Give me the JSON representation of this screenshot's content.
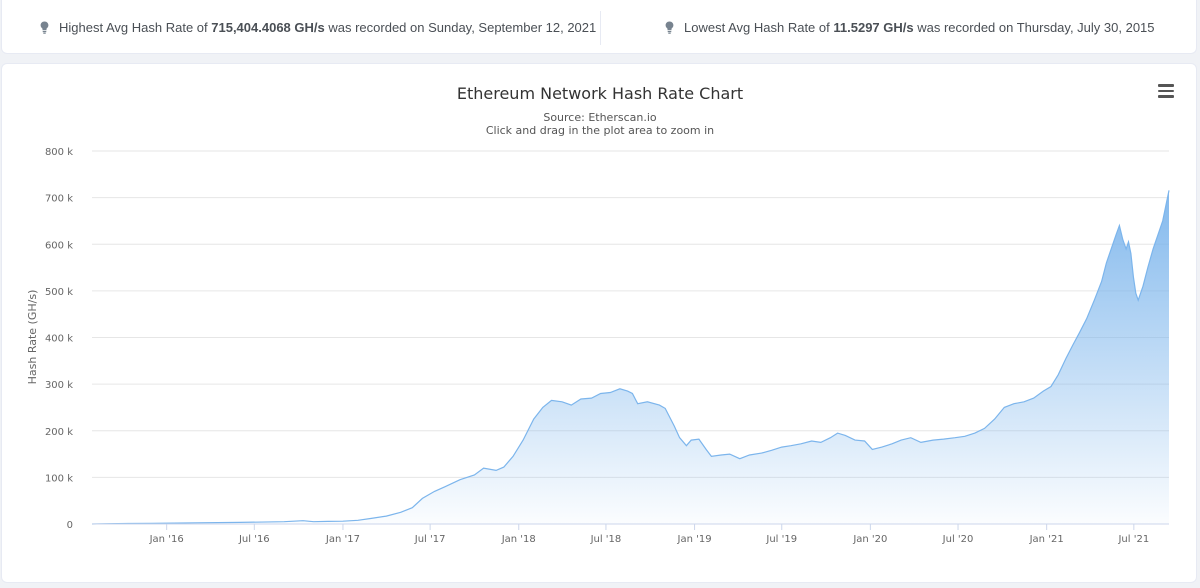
{
  "stats": {
    "highest": {
      "prefix": "Highest Avg Hash Rate of ",
      "value": "715,404.4068 GH/s",
      "suffix": " was recorded on Sunday, September 12, 2021"
    },
    "lowest": {
      "prefix": "Lowest Avg Hash Rate of ",
      "value": "11.5297 GH/s",
      "suffix": " was recorded on Thursday, July 30, 2015"
    },
    "icon": "lightbulb-icon"
  },
  "chart_data": {
    "type": "area",
    "title": "Ethereum Network Hash Rate Chart",
    "subtitle": "Source: Etherscan.io",
    "subtitle2": "Click and drag in the plot area to zoom in",
    "xlabel": "",
    "ylabel": "Hash Rate (GH/s)",
    "ylim": [
      0,
      800000
    ],
    "yticks": [
      0,
      100000,
      200000,
      300000,
      400000,
      500000,
      600000,
      700000,
      800000
    ],
    "ytick_labels": [
      "0",
      "100 k",
      "200 k",
      "300 k",
      "400 k",
      "500 k",
      "600 k",
      "700 k",
      "800 k"
    ],
    "xlim": [
      "2015-07-30",
      "2021-09-12"
    ],
    "xtick_dates": [
      "2016-01-01",
      "2016-07-01",
      "2017-01-01",
      "2017-07-01",
      "2018-01-01",
      "2018-07-01",
      "2019-01-01",
      "2019-07-01",
      "2020-01-01",
      "2020-07-01",
      "2021-01-01",
      "2021-07-01"
    ],
    "xtick_labels": [
      "Jan '16",
      "Jul '16",
      "Jan '17",
      "Jul '17",
      "Jan '18",
      "Jul '18",
      "Jan '19",
      "Jul '19",
      "Jan '20",
      "Jul '20",
      "Jan '21",
      "Jul '21"
    ],
    "grid": true,
    "color": "#7cb5ec",
    "series": [
      {
        "name": "Hash Rate (GH/s)",
        "points": [
          [
            "2015-07-30",
            11.53
          ],
          [
            "2015-09-01",
            700
          ],
          [
            "2015-12-01",
            1500
          ],
          [
            "2016-03-01",
            2500
          ],
          [
            "2016-06-01",
            3500
          ],
          [
            "2016-09-01",
            5000
          ],
          [
            "2016-10-10",
            7000
          ],
          [
            "2016-11-01",
            5000
          ],
          [
            "2016-12-01",
            5500
          ],
          [
            "2017-01-01",
            6000
          ],
          [
            "2017-02-01",
            8000
          ],
          [
            "2017-03-01",
            12000
          ],
          [
            "2017-04-01",
            17000
          ],
          [
            "2017-05-01",
            25000
          ],
          [
            "2017-05-25",
            35000
          ],
          [
            "2017-06-15",
            55000
          ],
          [
            "2017-07-10",
            70000
          ],
          [
            "2017-08-01",
            80000
          ],
          [
            "2017-09-01",
            95000
          ],
          [
            "2017-10-01",
            105000
          ],
          [
            "2017-10-20",
            120000
          ],
          [
            "2017-11-15",
            115000
          ],
          [
            "2017-12-01",
            122000
          ],
          [
            "2017-12-20",
            145000
          ],
          [
            "2018-01-10",
            180000
          ],
          [
            "2018-02-01",
            225000
          ],
          [
            "2018-02-20",
            250000
          ],
          [
            "2018-03-10",
            265000
          ],
          [
            "2018-04-01",
            262000
          ],
          [
            "2018-04-20",
            255000
          ],
          [
            "2018-05-10",
            268000
          ],
          [
            "2018-06-01",
            270000
          ],
          [
            "2018-06-20",
            280000
          ],
          [
            "2018-07-10",
            282000
          ],
          [
            "2018-07-30",
            290000
          ],
          [
            "2018-08-15",
            285000
          ],
          [
            "2018-08-25",
            280000
          ],
          [
            "2018-09-05",
            258000
          ],
          [
            "2018-09-25",
            262000
          ],
          [
            "2018-10-20",
            255000
          ],
          [
            "2018-11-01",
            248000
          ],
          [
            "2018-11-20",
            210000
          ],
          [
            "2018-12-01",
            185000
          ],
          [
            "2018-12-15",
            168000
          ],
          [
            "2018-12-25",
            180000
          ],
          [
            "2019-01-10",
            182000
          ],
          [
            "2019-01-25",
            160000
          ],
          [
            "2019-02-05",
            145000
          ],
          [
            "2019-02-25",
            148000
          ],
          [
            "2019-03-15",
            150000
          ],
          [
            "2019-04-05",
            140000
          ],
          [
            "2019-04-25",
            148000
          ],
          [
            "2019-05-20",
            152000
          ],
          [
            "2019-06-10",
            158000
          ],
          [
            "2019-07-01",
            165000
          ],
          [
            "2019-07-20",
            168000
          ],
          [
            "2019-08-10",
            172000
          ],
          [
            "2019-09-01",
            178000
          ],
          [
            "2019-09-20",
            175000
          ],
          [
            "2019-10-10",
            185000
          ],
          [
            "2019-10-25",
            195000
          ],
          [
            "2019-11-10",
            190000
          ],
          [
            "2019-11-30",
            180000
          ],
          [
            "2019-12-20",
            178000
          ],
          [
            "2020-01-05",
            160000
          ],
          [
            "2020-01-25",
            165000
          ],
          [
            "2020-02-15",
            172000
          ],
          [
            "2020-03-05",
            180000
          ],
          [
            "2020-03-25",
            185000
          ],
          [
            "2020-04-15",
            175000
          ],
          [
            "2020-05-10",
            180000
          ],
          [
            "2020-06-01",
            182000
          ],
          [
            "2020-06-25",
            185000
          ],
          [
            "2020-07-15",
            188000
          ],
          [
            "2020-08-05",
            195000
          ],
          [
            "2020-08-25",
            205000
          ],
          [
            "2020-09-15",
            225000
          ],
          [
            "2020-10-05",
            250000
          ],
          [
            "2020-10-25",
            258000
          ],
          [
            "2020-11-15",
            262000
          ],
          [
            "2020-12-05",
            270000
          ],
          [
            "2020-12-25",
            285000
          ],
          [
            "2021-01-10",
            295000
          ],
          [
            "2021-01-25",
            320000
          ],
          [
            "2021-02-10",
            355000
          ],
          [
            "2021-02-25",
            385000
          ],
          [
            "2021-03-10",
            410000
          ],
          [
            "2021-03-25",
            440000
          ],
          [
            "2021-04-10",
            480000
          ],
          [
            "2021-04-25",
            520000
          ],
          [
            "2021-05-05",
            560000
          ],
          [
            "2021-05-15",
            590000
          ],
          [
            "2021-05-25",
            620000
          ],
          [
            "2021-06-01",
            640000
          ],
          [
            "2021-06-08",
            610000
          ],
          [
            "2021-06-15",
            590000
          ],
          [
            "2021-06-20",
            605000
          ],
          [
            "2021-06-25",
            580000
          ],
          [
            "2021-06-30",
            530000
          ],
          [
            "2021-07-05",
            495000
          ],
          [
            "2021-07-10",
            480000
          ],
          [
            "2021-07-20",
            510000
          ],
          [
            "2021-07-30",
            550000
          ],
          [
            "2021-08-10",
            590000
          ],
          [
            "2021-08-20",
            620000
          ],
          [
            "2021-08-30",
            650000
          ],
          [
            "2021-09-05",
            680000
          ],
          [
            "2021-09-12",
            715404.41
          ]
        ]
      }
    ]
  }
}
